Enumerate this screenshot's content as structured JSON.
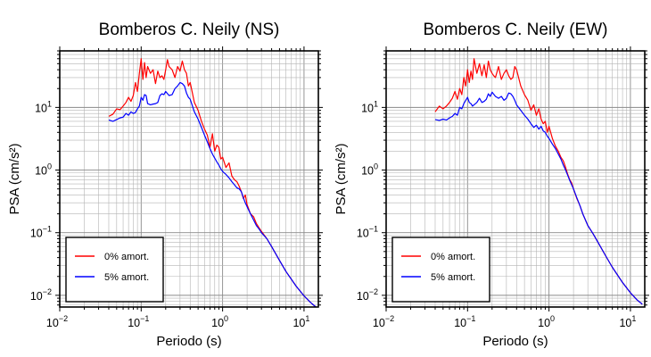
{
  "chart_data": [
    {
      "type": "line",
      "title": "Bomberos C. Neily (NS)",
      "xlabel": "Periodo (s)",
      "ylabel": "PSA (cm/s²)",
      "xscale": "log",
      "yscale": "log",
      "xlim": [
        0.01,
        15
      ],
      "ylim": [
        0.0065,
        80
      ],
      "xticks": [
        {
          "base": "10",
          "exp": "−2"
        },
        {
          "base": "10",
          "exp": "−1"
        },
        {
          "base": "10",
          "exp": "0"
        },
        {
          "base": "10",
          "exp": "1"
        }
      ],
      "yticks": [
        {
          "mant": "10",
          "exp": "−2"
        },
        {
          "mant": "10",
          "exp": "−1"
        },
        {
          "mant": "10",
          "exp": "0"
        },
        {
          "mant": "10",
          "exp": "1"
        }
      ],
      "grid": true,
      "legend_position": "bottom-left",
      "series": [
        {
          "name": "0% amort.",
          "color": "#ff0000",
          "x": [
            0.04,
            0.045,
            0.05,
            0.055,
            0.06,
            0.065,
            0.07,
            0.075,
            0.08,
            0.085,
            0.09,
            0.095,
            0.1,
            0.105,
            0.11,
            0.115,
            0.12,
            0.13,
            0.14,
            0.15,
            0.16,
            0.17,
            0.18,
            0.19,
            0.2,
            0.21,
            0.22,
            0.24,
            0.26,
            0.28,
            0.3,
            0.32,
            0.34,
            0.36,
            0.38,
            0.4,
            0.45,
            0.5,
            0.55,
            0.6,
            0.65,
            0.7,
            0.75,
            0.8,
            0.85,
            0.9,
            0.95,
            1.0,
            1.1,
            1.2,
            1.3,
            1.4,
            1.5,
            1.6,
            1.7,
            1.8,
            1.9,
            2.0,
            2.2,
            2.4,
            2.6,
            2.8,
            3.0,
            3.5,
            4.0,
            5.0,
            6.0,
            8.0,
            10.0,
            12.0,
            14.0
          ],
          "y": [
            7.2,
            7.8,
            9.5,
            9.2,
            10.5,
            12.0,
            14.5,
            12.5,
            15.5,
            25.0,
            18.0,
            35.0,
            60.0,
            28.0,
            52.0,
            30.0,
            45.0,
            35.0,
            40.0,
            24.0,
            38.0,
            30.0,
            32.0,
            28.0,
            40.0,
            58.0,
            45.0,
            40.0,
            30.0,
            45.0,
            38.0,
            55.0,
            40.0,
            35.0,
            22.0,
            25.0,
            12.0,
            9.0,
            6.0,
            4.5,
            3.6,
            2.3,
            3.8,
            2.0,
            2.5,
            2.3,
            1.5,
            1.6,
            1.1,
            1.3,
            0.8,
            0.7,
            0.65,
            0.55,
            0.45,
            0.35,
            0.4,
            0.28,
            0.2,
            0.18,
            0.14,
            0.12,
            0.105,
            0.08,
            0.06,
            0.036,
            0.024,
            0.014,
            0.0098,
            0.0077,
            0.0065
          ]
        },
        {
          "name": "5% amort.",
          "color": "#0000ff",
          "x": [
            0.04,
            0.045,
            0.05,
            0.055,
            0.06,
            0.065,
            0.07,
            0.075,
            0.08,
            0.085,
            0.09,
            0.095,
            0.1,
            0.105,
            0.11,
            0.115,
            0.12,
            0.13,
            0.14,
            0.15,
            0.16,
            0.17,
            0.18,
            0.19,
            0.2,
            0.22,
            0.24,
            0.26,
            0.28,
            0.3,
            0.32,
            0.34,
            0.36,
            0.38,
            0.4,
            0.45,
            0.5,
            0.55,
            0.6,
            0.65,
            0.7,
            0.75,
            0.8,
            0.85,
            0.9,
            0.95,
            1.0,
            1.1,
            1.2,
            1.3,
            1.4,
            1.5,
            1.6,
            1.7,
            1.8,
            1.9,
            2.0,
            2.2,
            2.4,
            2.6,
            2.8,
            3.0,
            3.5,
            4.0,
            5.0,
            6.0,
            8.0,
            10.0,
            12.0,
            14.0
          ],
          "y": [
            6.3,
            6.0,
            6.4,
            6.8,
            7.0,
            8.0,
            7.5,
            8.5,
            8.0,
            8.3,
            9.5,
            10.5,
            14.5,
            13.0,
            16.0,
            15.5,
            11.5,
            11.0,
            11.3,
            11.5,
            12.0,
            15.5,
            16.5,
            16.0,
            18.0,
            15.5,
            16.0,
            20.0,
            22.0,
            25.0,
            24.0,
            22.0,
            17.0,
            14.5,
            13.5,
            8.5,
            6.5,
            4.8,
            3.6,
            2.8,
            2.2,
            1.8,
            1.55,
            1.35,
            1.2,
            1.05,
            0.95,
            0.85,
            0.75,
            0.65,
            0.58,
            0.52,
            0.5,
            0.45,
            0.36,
            0.3,
            0.26,
            0.2,
            0.16,
            0.13,
            0.115,
            0.1,
            0.08,
            0.06,
            0.036,
            0.024,
            0.014,
            0.0098,
            0.0077,
            0.0065
          ]
        }
      ]
    },
    {
      "type": "line",
      "title": "Bomberos C. Neily (EW)",
      "xlabel": "Periodo (s)",
      "ylabel": "PSA (cm/s²)",
      "xscale": "log",
      "yscale": "log",
      "xlim": [
        0.01,
        15
      ],
      "ylim": [
        0.0065,
        80
      ],
      "xticks": [
        {
          "base": "10",
          "exp": "−2"
        },
        {
          "base": "10",
          "exp": "−1"
        },
        {
          "base": "10",
          "exp": "0"
        },
        {
          "base": "10",
          "exp": "1"
        }
      ],
      "yticks": [
        {
          "mant": "10",
          "exp": "−2"
        },
        {
          "mant": "10",
          "exp": "−1"
        },
        {
          "mant": "10",
          "exp": "0"
        },
        {
          "mant": "10",
          "exp": "1"
        }
      ],
      "grid": true,
      "legend_position": "bottom-left",
      "series": [
        {
          "name": "0% amort.",
          "color": "#ff0000",
          "x": [
            0.04,
            0.045,
            0.05,
            0.055,
            0.06,
            0.065,
            0.07,
            0.075,
            0.08,
            0.085,
            0.09,
            0.095,
            0.1,
            0.105,
            0.11,
            0.115,
            0.12,
            0.13,
            0.14,
            0.15,
            0.16,
            0.17,
            0.18,
            0.19,
            0.2,
            0.21,
            0.22,
            0.24,
            0.26,
            0.28,
            0.3,
            0.32,
            0.34,
            0.36,
            0.38,
            0.4,
            0.45,
            0.5,
            0.55,
            0.6,
            0.65,
            0.7,
            0.75,
            0.8,
            0.85,
            0.9,
            0.95,
            1.0,
            1.1,
            1.2,
            1.3,
            1.4,
            1.5,
            1.6,
            1.7,
            1.8,
            1.9,
            2.0,
            2.2,
            2.4,
            2.6,
            2.8,
            3.0,
            3.5,
            4.0,
            5.0,
            6.0,
            8.0,
            10.0,
            12.0,
            14.0
          ],
          "y": [
            8.5,
            10.5,
            9.5,
            10.5,
            12.0,
            14.0,
            18.0,
            13.5,
            20.0,
            16.0,
            30.0,
            22.0,
            40.0,
            25.0,
            38.0,
            28.0,
            60.0,
            35.0,
            50.0,
            32.0,
            48.0,
            30.0,
            55.0,
            40.0,
            35.0,
            32.0,
            30.0,
            45.0,
            28.0,
            35.0,
            40.0,
            32.0,
            28.0,
            30.0,
            45.0,
            40.0,
            22.0,
            16.0,
            13.0,
            9.0,
            11.0,
            7.5,
            9.5,
            6.5,
            5.5,
            6.0,
            4.0,
            5.0,
            3.2,
            2.4,
            2.0,
            1.6,
            1.4,
            1.1,
            0.85,
            0.7,
            0.62,
            0.5,
            0.35,
            0.27,
            0.2,
            0.16,
            0.13,
            0.095,
            0.07,
            0.042,
            0.028,
            0.016,
            0.011,
            0.0085,
            0.0072
          ]
        },
        {
          "name": "5% amort.",
          "color": "#0000ff",
          "x": [
            0.04,
            0.045,
            0.05,
            0.055,
            0.06,
            0.065,
            0.07,
            0.075,
            0.08,
            0.085,
            0.09,
            0.095,
            0.1,
            0.105,
            0.11,
            0.115,
            0.12,
            0.13,
            0.14,
            0.15,
            0.16,
            0.17,
            0.18,
            0.19,
            0.2,
            0.22,
            0.24,
            0.26,
            0.28,
            0.3,
            0.32,
            0.34,
            0.36,
            0.38,
            0.4,
            0.45,
            0.5,
            0.55,
            0.6,
            0.65,
            0.7,
            0.75,
            0.8,
            0.85,
            0.9,
            0.95,
            1.0,
            1.1,
            1.2,
            1.3,
            1.4,
            1.5,
            1.6,
            1.7,
            1.8,
            1.9,
            2.0,
            2.2,
            2.4,
            2.6,
            2.8,
            3.0,
            3.5,
            4.0,
            5.0,
            6.0,
            8.0,
            10.0,
            12.0,
            14.0
          ],
          "y": [
            6.4,
            6.2,
            6.5,
            6.3,
            6.8,
            7.2,
            8.0,
            7.5,
            10.0,
            9.5,
            11.5,
            13.0,
            14.5,
            12.0,
            11.5,
            10.5,
            11.0,
            12.0,
            14.0,
            12.0,
            12.5,
            13.5,
            16.5,
            15.0,
            17.5,
            15.0,
            14.0,
            15.0,
            13.0,
            14.0,
            17.0,
            16.5,
            15.0,
            13.0,
            11.0,
            9.0,
            7.5,
            6.5,
            5.5,
            4.8,
            5.2,
            4.5,
            5.0,
            4.2,
            4.0,
            3.5,
            3.2,
            2.6,
            2.2,
            1.8,
            1.5,
            1.2,
            1.0,
            0.82,
            0.68,
            0.58,
            0.5,
            0.36,
            0.27,
            0.2,
            0.16,
            0.13,
            0.095,
            0.07,
            0.042,
            0.028,
            0.016,
            0.011,
            0.0085,
            0.0072
          ]
        }
      ]
    }
  ]
}
